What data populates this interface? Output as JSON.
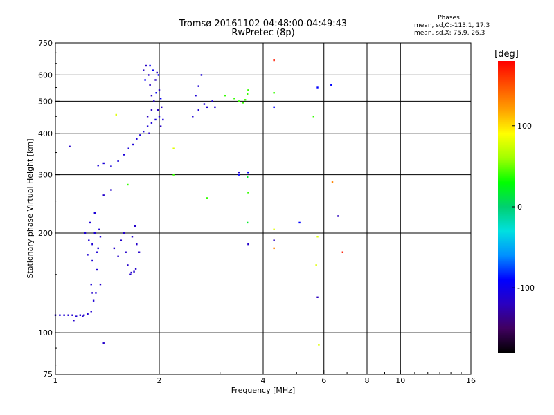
{
  "header": {
    "title_line1": "Tromsø 20161102 04:48:00-04:49:43",
    "title_line2": "RwPretec (8p)",
    "phases_heading": "Phases",
    "phases_o": "mean, sd,O:-113.1, 17.3",
    "phases_x": "mean, sd,X:  75.9, 26.3"
  },
  "chart_data": {
    "type": "scatter",
    "xlabel": "Frequency [MHz]",
    "ylabel": "Stationary phase Virtual Height [km]",
    "x_scale": "log",
    "y_scale": "log",
    "xlim": [
      1,
      16
    ],
    "ylim": [
      75,
      750
    ],
    "x_ticks": [
      1,
      2,
      4,
      6,
      8,
      10,
      16
    ],
    "x_tick_labels": [
      "1",
      "2",
      "4",
      "6",
      "8",
      "10",
      "16"
    ],
    "x_gridlines": [
      2,
      4,
      6,
      8,
      10
    ],
    "y_ticks": [
      75,
      100,
      200,
      300,
      400,
      500,
      600,
      750
    ],
    "y_tick_labels": [
      "75",
      "100",
      "200",
      "300",
      "400",
      "500",
      "600",
      "750"
    ],
    "y_gridlines": [
      100,
      200,
      300,
      400,
      500,
      600
    ],
    "grid": true,
    "colorbar": {
      "label": "[deg]",
      "range": [
        -180,
        180
      ],
      "ticks": [
        100,
        0,
        -100
      ],
      "tick_labels": [
        "100",
        "0",
        "-100"
      ],
      "colors": [
        "#000000",
        "#400060",
        "#2a00c0",
        "#0000ff",
        "#0090ff",
        "#00e0e0",
        "#00d070",
        "#00ff00",
        "#a0ff00",
        "#ffff00",
        "#ffa000",
        "#ff5000",
        "#ff0000"
      ]
    },
    "series": [
      {
        "phase": -112,
        "points": [
          [
            1.0,
            113
          ],
          [
            1.03,
            113
          ],
          [
            1.06,
            113
          ],
          [
            1.09,
            113
          ],
          [
            1.12,
            113
          ],
          [
            1.15,
            112
          ],
          [
            1.18,
            113
          ],
          [
            1.21,
            113
          ],
          [
            1.24,
            114
          ],
          [
            1.27,
            116
          ]
        ]
      },
      {
        "phase": -110,
        "points": [
          [
            1.25,
            190
          ],
          [
            1.28,
            185
          ],
          [
            1.3,
            200
          ],
          [
            1.32,
            175
          ],
          [
            1.22,
            200
          ],
          [
            1.26,
            215
          ],
          [
            1.3,
            230
          ],
          [
            1.34,
            205
          ],
          [
            1.28,
            165
          ],
          [
            1.32,
            155
          ],
          [
            1.27,
            140
          ],
          [
            1.31,
            132
          ],
          [
            1.29,
            125
          ],
          [
            1.35,
            195
          ],
          [
            1.33,
            180
          ],
          [
            1.24,
            172
          ]
        ]
      },
      {
        "phase": -115,
        "points": [
          [
            1.48,
            180
          ],
          [
            1.52,
            170
          ],
          [
            1.55,
            190
          ],
          [
            1.58,
            200
          ],
          [
            1.6,
            175
          ],
          [
            1.62,
            160
          ],
          [
            1.65,
            150
          ],
          [
            1.67,
            195
          ],
          [
            1.7,
            210
          ],
          [
            1.72,
            185
          ],
          [
            1.75,
            175
          ],
          [
            1.66,
            152
          ],
          [
            1.69,
            153
          ],
          [
            1.71,
            156
          ]
        ]
      },
      {
        "phase": -108,
        "points": [
          [
            1.33,
            320
          ],
          [
            1.38,
            325
          ],
          [
            1.45,
            318
          ],
          [
            1.52,
            330
          ],
          [
            1.58,
            345
          ],
          [
            1.63,
            360
          ],
          [
            1.68,
            370
          ],
          [
            1.72,
            385
          ],
          [
            1.76,
            395
          ],
          [
            1.8,
            405
          ],
          [
            1.85,
            420
          ],
          [
            1.9,
            430
          ],
          [
            1.95,
            440
          ],
          [
            2.0,
            450
          ],
          [
            2.05,
            440
          ]
        ]
      },
      {
        "phase": -118,
        "points": [
          [
            1.8,
            620
          ],
          [
            1.83,
            640
          ],
          [
            1.86,
            600
          ],
          [
            1.88,
            560
          ],
          [
            1.9,
            520
          ],
          [
            1.93,
            500
          ],
          [
            1.95,
            580
          ],
          [
            1.97,
            610
          ],
          [
            2.0,
            540
          ],
          [
            2.03,
            480
          ],
          [
            1.85,
            450
          ],
          [
            1.9,
            470
          ],
          [
            1.98,
            470
          ],
          [
            2.02,
            420
          ],
          [
            1.87,
            400
          ]
        ]
      },
      {
        "phase": -95,
        "points": [
          [
            1.82,
            580
          ],
          [
            1.88,
            640
          ],
          [
            1.92,
            620
          ],
          [
            1.96,
            530
          ],
          [
            1.99,
            600
          ],
          [
            2.02,
            510
          ]
        ]
      },
      {
        "phase": -110,
        "points": [
          [
            2.5,
            450
          ],
          [
            2.6,
            470
          ],
          [
            2.7,
            490
          ],
          [
            2.75,
            480
          ],
          [
            2.85,
            500
          ],
          [
            2.9,
            480
          ],
          [
            2.55,
            520
          ],
          [
            2.6,
            555
          ],
          [
            2.65,
            600
          ]
        ]
      },
      {
        "phase": 40,
        "points": [
          [
            3.3,
            510
          ],
          [
            3.4,
            500
          ],
          [
            3.5,
            495
          ],
          [
            3.55,
            505
          ],
          [
            3.6,
            525
          ],
          [
            3.62,
            540
          ],
          [
            3.1,
            520
          ]
        ]
      },
      {
        "phase": -115,
        "points": [
          [
            1.13,
            109
          ],
          [
            1.2,
            112
          ],
          [
            1.28,
            132
          ],
          [
            1.35,
            140
          ],
          [
            1.38,
            260
          ],
          [
            1.45,
            270
          ],
          [
            1.1,
            365
          ],
          [
            1.38,
            93
          ],
          [
            3.4,
            305
          ],
          [
            3.62,
            305
          ],
          [
            3.62,
            185
          ]
        ]
      },
      {
        "phase": 80,
        "points": [
          [
            1.5,
            455
          ],
          [
            2.2,
            360
          ],
          [
            5.7,
            160
          ],
          [
            5.75,
            195
          ],
          [
            5.8,
            92
          ],
          [
            4.3,
            205
          ]
        ]
      },
      {
        "phase": 40,
        "points": [
          [
            1.62,
            280
          ],
          [
            2.2,
            300
          ],
          [
            2.75,
            255
          ],
          [
            3.62,
            265
          ],
          [
            4.3,
            530
          ],
          [
            5.6,
            450
          ]
        ]
      },
      {
        "phase": 20,
        "points": [
          [
            3.6,
            295
          ],
          [
            3.6,
            215
          ]
        ]
      },
      {
        "phase": 170,
        "points": [
          [
            4.3,
            665
          ],
          [
            6.8,
            175
          ]
        ]
      },
      {
        "phase": -90,
        "points": [
          [
            4.3,
            480
          ],
          [
            5.75,
            550
          ],
          [
            6.3,
            560
          ],
          [
            5.1,
            215
          ],
          [
            3.62,
            305
          ],
          [
            3.4,
            300
          ]
        ]
      },
      {
        "phase": -120,
        "points": [
          [
            6.6,
            225
          ],
          [
            5.75,
            128
          ],
          [
            4.3,
            190
          ]
        ]
      },
      {
        "phase": 130,
        "points": [
          [
            4.3,
            180
          ],
          [
            6.35,
            285
          ]
        ]
      }
    ]
  }
}
